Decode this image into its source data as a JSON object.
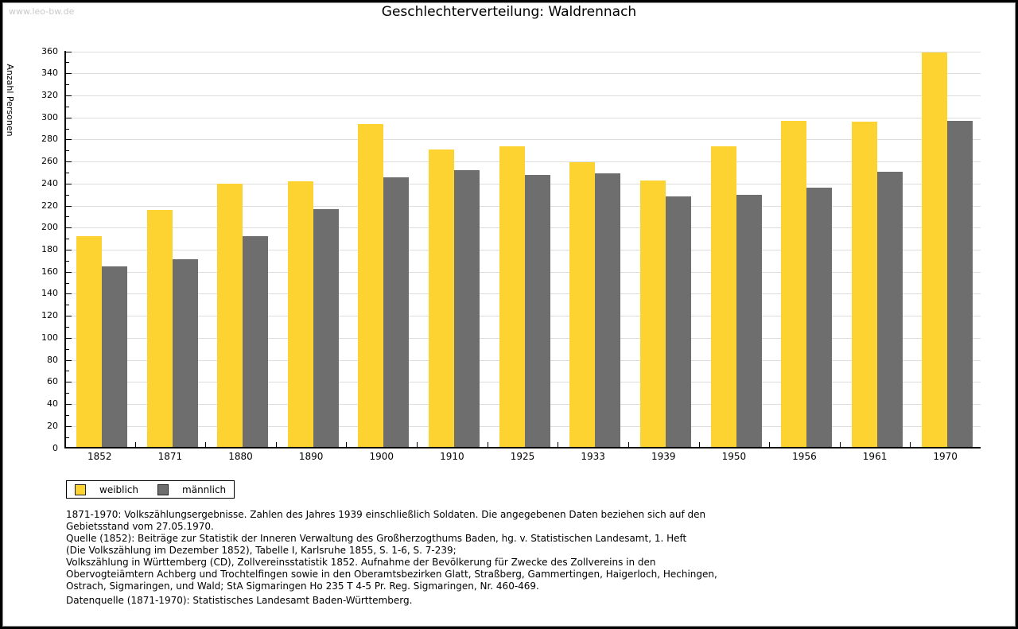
{
  "watermark": "www.leo-bw.de",
  "title": "Geschlechterverteilung: Waldrennach",
  "chart_data": {
    "type": "bar",
    "title": "Geschlechterverteilung: Waldrennach",
    "xlabel": "",
    "ylabel": "Anzahl Personen",
    "ylim": [
      0,
      360
    ],
    "ytick_step": 20,
    "ytick_minor_step": 10,
    "grid": true,
    "legend_position": "bottom-left",
    "categories": [
      "1852",
      "1871",
      "1880",
      "1890",
      "1900",
      "1910",
      "1925",
      "1933",
      "1939",
      "1950",
      "1956",
      "1961",
      "1970"
    ],
    "series": [
      {
        "name": "weiblich",
        "color": "#fcd330",
        "values": [
          192,
          216,
          240,
          242,
          294,
          271,
          274,
          259,
          243,
          274,
          297,
          296,
          359
        ]
      },
      {
        "name": "männlich",
        "color": "#6e6e6e",
        "values": [
          165,
          171,
          192,
          217,
          246,
          252,
          248,
          249,
          228,
          230,
          236,
          251,
          297
        ]
      }
    ]
  },
  "footnote_lines": [
    "1871-1970: Volkszählungsergebnisse. Zahlen des Jahres 1939 einschließlich Soldaten. Die angegebenen Daten beziehen sich auf den",
    "Gebietsstand vom 27.05.1970.",
    "Quelle (1852): Beiträge zur Statistik der Inneren Verwaltung des Großherzogthums Baden, hg. v. Statistischen Landesamt, 1. Heft",
    "(Die Volkszählung im Dezember 1852), Tabelle I, Karlsruhe 1855, S. 1-6, S. 7-239;",
    "Volkszählung in Württemberg (CD), Zollvereinsstatistik 1852. Aufnahme der Bevölkerung für Zwecke des Zollvereins in den",
    "Obervogteiämtern Achberg und Trochtelfingen sowie in den Oberamtsbezirken Glatt, Straßberg, Gammertingen, Haigerloch, Hechingen,",
    "Ostrach, Sigmaringen, und Wald; StA Sigmaringen Ho 235 T 4-5 Pr. Reg. Sigmaringen, Nr. 460-469."
  ],
  "datasource_line": "Datenquelle (1871-1970): Statistisches Landesamt Baden-Württemberg."
}
